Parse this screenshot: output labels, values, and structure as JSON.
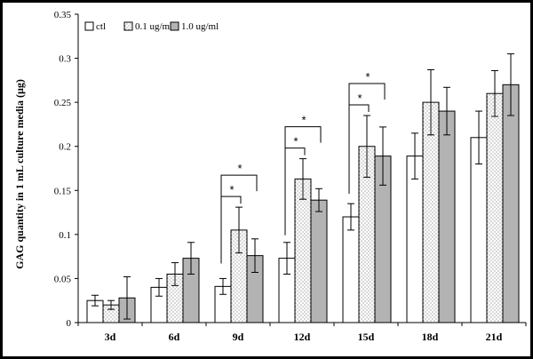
{
  "chart_data": {
    "type": "bar",
    "title": "",
    "xlabel": "",
    "ylabel": "GAG quantity in 1 mL culture media (µg)",
    "ylim": [
      0,
      0.35
    ],
    "yticks": [
      "0",
      "0.05",
      "0.1",
      "0.15",
      "0.2",
      "0.25",
      "0.3",
      "0.35"
    ],
    "categories": [
      "3d",
      "6d",
      "9d",
      "12d",
      "15d",
      "18d",
      "21d"
    ],
    "legend_position": "top-left",
    "series": [
      {
        "name": "ctl",
        "pattern": "white",
        "values": [
          0.025,
          0.04,
          0.041,
          0.073,
          0.12,
          0.189,
          0.21
        ],
        "errors": [
          0.006,
          0.01,
          0.009,
          0.018,
          0.015,
          0.026,
          0.03
        ]
      },
      {
        "name": "0.1 ug/ml",
        "pattern": "dotted",
        "values": [
          0.02,
          0.055,
          0.105,
          0.163,
          0.2,
          0.25,
          0.26
        ],
        "errors": [
          0.005,
          0.013,
          0.026,
          0.023,
          0.035,
          0.037,
          0.026
        ]
      },
      {
        "name": "1.0 ug/ml",
        "pattern": "gray",
        "values": [
          0.028,
          0.073,
          0.076,
          0.139,
          0.189,
          0.24,
          0.27
        ],
        "errors": [
          0.024,
          0.018,
          0.019,
          0.013,
          0.033,
          0.027,
          0.035
        ]
      }
    ],
    "significance": [
      {
        "category": "9d",
        "from_series": 0,
        "to_series": 1,
        "label": "*"
      },
      {
        "category": "9d",
        "from_series": 0,
        "to_series": 2,
        "label": "*"
      },
      {
        "category": "12d",
        "from_series": 0,
        "to_series": 1,
        "label": "*"
      },
      {
        "category": "12d",
        "from_series": 0,
        "to_series": 2,
        "label": "*"
      },
      {
        "category": "15d",
        "from_series": 0,
        "to_series": 1,
        "label": "*"
      },
      {
        "category": "15d",
        "from_series": 0,
        "to_series": 2,
        "label": "*"
      }
    ],
    "colors": {
      "ctl": "#ffffff",
      "dotted": "#ffffff",
      "gray": "#b3b3b3",
      "axis": "#000000"
    }
  }
}
